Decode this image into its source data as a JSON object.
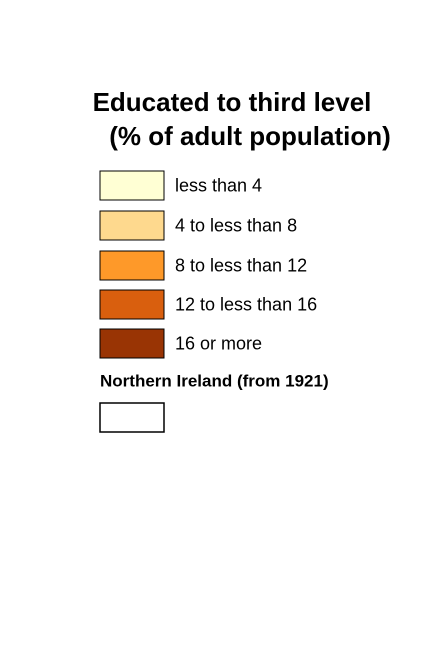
{
  "legend": {
    "title": [
      "Educated to third level",
      "(% of adult population)"
    ],
    "items": [
      {
        "label": "less than 4",
        "color": "#ffffd4"
      },
      {
        "label": "4 to less than 8",
        "color": "#fed98e"
      },
      {
        "label": "8 to less than 12",
        "color": "#fe9929"
      },
      {
        "label": "12 to less than 16",
        "color": "#d95f0e"
      },
      {
        "label": "16 or more",
        "color": "#993404"
      }
    ],
    "extra": {
      "label": "Northern Ireland (from 1921)",
      "color": "#ffffff"
    }
  }
}
